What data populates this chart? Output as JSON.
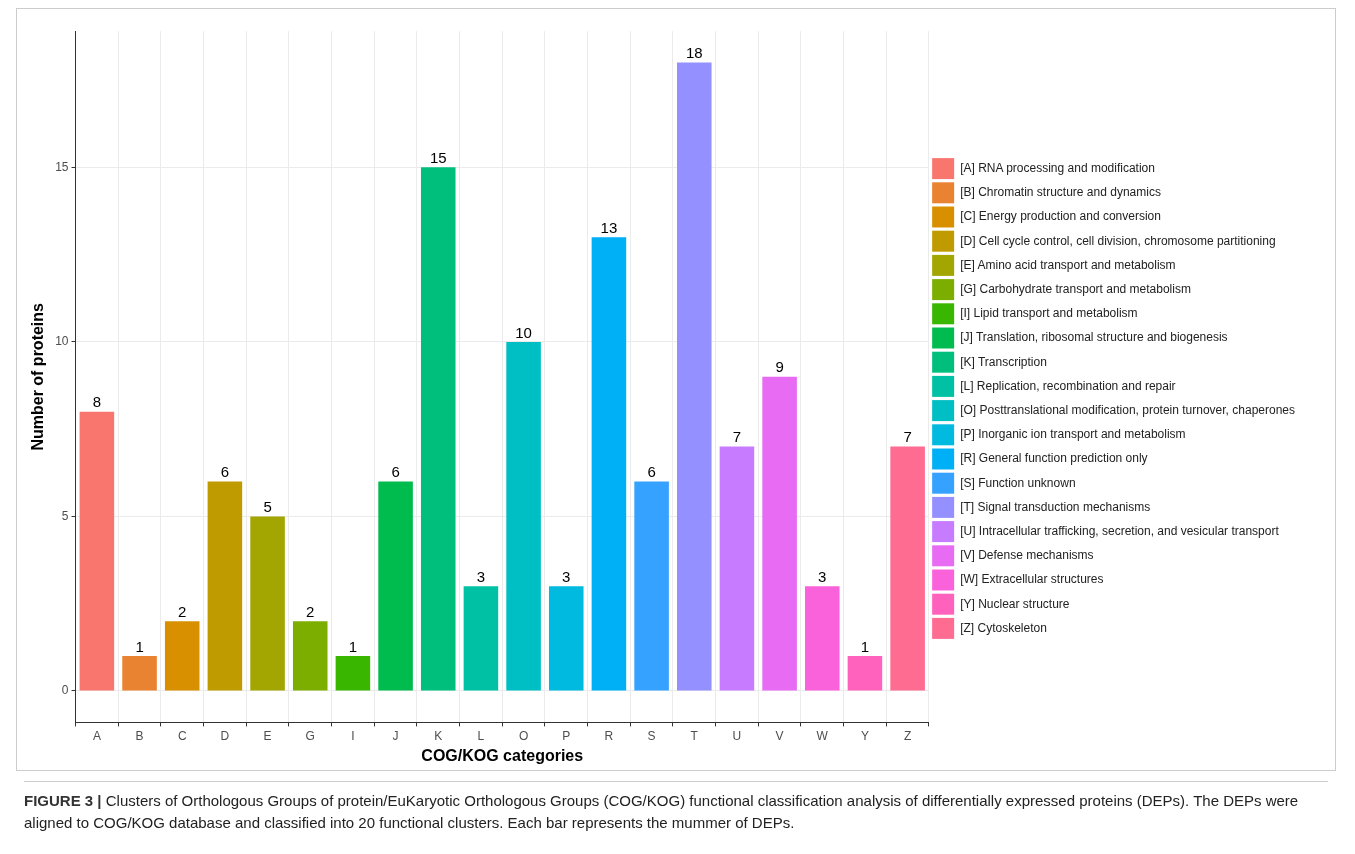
{
  "chart_data": {
    "type": "bar",
    "xlabel": "COG/KOG categories",
    "ylabel": "Number of proteins",
    "categories": [
      "A",
      "B",
      "C",
      "D",
      "E",
      "G",
      "I",
      "J",
      "K",
      "L",
      "O",
      "P",
      "R",
      "S",
      "T",
      "U",
      "V",
      "W",
      "Y",
      "Z"
    ],
    "series": [
      {
        "name": "[A] RNA processing and modification",
        "color": "#f8766d",
        "values": [
          8,
          null,
          null,
          null,
          null,
          null,
          null,
          null,
          null,
          null,
          null,
          null,
          null,
          null,
          null,
          null,
          null,
          null,
          null,
          null
        ]
      },
      {
        "name": "[B] Chromatin structure and dynamics",
        "color": "#ea8331",
        "values": [
          null,
          1,
          null,
          null,
          null,
          null,
          null,
          null,
          null,
          null,
          null,
          null,
          null,
          null,
          null,
          null,
          null,
          null,
          null,
          null
        ]
      },
      {
        "name": "[C] Energy production and conversion",
        "color": "#d89000",
        "values": [
          null,
          null,
          2,
          null,
          null,
          null,
          null,
          null,
          null,
          null,
          null,
          null,
          null,
          null,
          null,
          null,
          null,
          null,
          null,
          null
        ]
      },
      {
        "name": "[D] Cell cycle control, cell division, chromosome partitioning",
        "color": "#c09b00",
        "values": [
          null,
          null,
          null,
          6,
          null,
          null,
          null,
          null,
          null,
          null,
          null,
          null,
          null,
          null,
          null,
          null,
          null,
          null,
          null,
          null
        ]
      },
      {
        "name": "[E] Amino acid transport and metabolism",
        "color": "#a3a500",
        "values": [
          null,
          null,
          null,
          null,
          5,
          null,
          null,
          null,
          null,
          null,
          null,
          null,
          null,
          null,
          null,
          null,
          null,
          null,
          null,
          null
        ]
      },
      {
        "name": "[G] Carbohydrate transport and metabolism",
        "color": "#7cae00",
        "values": [
          null,
          null,
          null,
          null,
          null,
          2,
          null,
          null,
          null,
          null,
          null,
          null,
          null,
          null,
          null,
          null,
          null,
          null,
          null,
          null
        ]
      },
      {
        "name": "[I] Lipid transport and metabolism",
        "color": "#39b600",
        "values": [
          null,
          null,
          null,
          null,
          null,
          null,
          1,
          null,
          null,
          null,
          null,
          null,
          null,
          null,
          null,
          null,
          null,
          null,
          null,
          null
        ]
      },
      {
        "name": "[J] Translation, ribosomal structure and biogenesis",
        "color": "#00bb4e",
        "values": [
          null,
          null,
          null,
          null,
          null,
          null,
          null,
          6,
          null,
          null,
          null,
          null,
          null,
          null,
          null,
          null,
          null,
          null,
          null,
          null
        ]
      },
      {
        "name": "[K] Transcription",
        "color": "#00bf7d",
        "values": [
          null,
          null,
          null,
          null,
          null,
          null,
          null,
          null,
          15,
          null,
          null,
          null,
          null,
          null,
          null,
          null,
          null,
          null,
          null,
          null
        ]
      },
      {
        "name": "[L] Replication, recombination and repair",
        "color": "#00c1a3",
        "values": [
          null,
          null,
          null,
          null,
          null,
          null,
          null,
          null,
          null,
          3,
          null,
          null,
          null,
          null,
          null,
          null,
          null,
          null,
          null,
          null
        ]
      },
      {
        "name": "[O] Posttranslational modification, protein turnover, chaperones",
        "color": "#00bfc4",
        "values": [
          null,
          null,
          null,
          null,
          null,
          null,
          null,
          null,
          null,
          null,
          10,
          null,
          null,
          null,
          null,
          null,
          null,
          null,
          null,
          null
        ]
      },
      {
        "name": "[P] Inorganic ion transport and metabolism",
        "color": "#00bae0",
        "values": [
          null,
          null,
          null,
          null,
          null,
          null,
          null,
          null,
          null,
          null,
          null,
          3,
          null,
          null,
          null,
          null,
          null,
          null,
          null,
          null
        ]
      },
      {
        "name": "[R] General function prediction only",
        "color": "#00b0f6",
        "values": [
          null,
          null,
          null,
          null,
          null,
          null,
          null,
          null,
          null,
          null,
          null,
          null,
          13,
          null,
          null,
          null,
          null,
          null,
          null,
          null
        ]
      },
      {
        "name": "[S] Function unknown",
        "color": "#35a2ff",
        "values": [
          null,
          null,
          null,
          null,
          null,
          null,
          null,
          null,
          null,
          null,
          null,
          null,
          null,
          6,
          null,
          null,
          null,
          null,
          null,
          null
        ]
      },
      {
        "name": "[T] Signal transduction mechanisms",
        "color": "#9590ff",
        "values": [
          null,
          null,
          null,
          null,
          null,
          null,
          null,
          null,
          null,
          null,
          null,
          null,
          null,
          null,
          18,
          null,
          null,
          null,
          null,
          null
        ]
      },
      {
        "name": "[U] Intracellular trafficking, secretion, and vesicular transport",
        "color": "#c77cff",
        "values": [
          null,
          null,
          null,
          null,
          null,
          null,
          null,
          null,
          null,
          null,
          null,
          null,
          null,
          null,
          null,
          7,
          null,
          null,
          null,
          null
        ]
      },
      {
        "name": "[V] Defense mechanisms",
        "color": "#e76bf3",
        "values": [
          null,
          null,
          null,
          null,
          null,
          null,
          null,
          null,
          null,
          null,
          null,
          null,
          null,
          null,
          null,
          null,
          9,
          null,
          null,
          null
        ]
      },
      {
        "name": "[W] Extracellular structures",
        "color": "#fa62db",
        "values": [
          null,
          null,
          null,
          null,
          null,
          null,
          null,
          null,
          null,
          null,
          null,
          null,
          null,
          null,
          null,
          null,
          null,
          3,
          null,
          null
        ]
      },
      {
        "name": "[Y] Nuclear structure",
        "color": "#ff62bc",
        "values": [
          null,
          null,
          null,
          null,
          null,
          null,
          null,
          null,
          null,
          null,
          null,
          null,
          null,
          null,
          null,
          null,
          null,
          null,
          1,
          null
        ]
      },
      {
        "name": "[Z] Cytoskeleton",
        "color": "#ff6c91",
        "values": [
          null,
          null,
          null,
          null,
          null,
          null,
          null,
          null,
          null,
          null,
          null,
          null,
          null,
          null,
          null,
          null,
          null,
          null,
          null,
          7
        ]
      }
    ],
    "ylim": [
      -0.9,
      18.9
    ],
    "yticks": [
      0,
      5,
      10,
      15
    ],
    "grid": true,
    "legend": "right",
    "data_labels": true,
    "annotations": [
      "FIGURE 3 | Clusters of Orthologous Groups of protein/EuKaryotic Orthologous Groups (COG/KOG) functional classification analysis of differentially expressed proteins (DEPs). The DEPs were aligned to COG/KOG database and classified into 20 functional clusters. Each bar represents the mummer of DEPs."
    ]
  }
}
